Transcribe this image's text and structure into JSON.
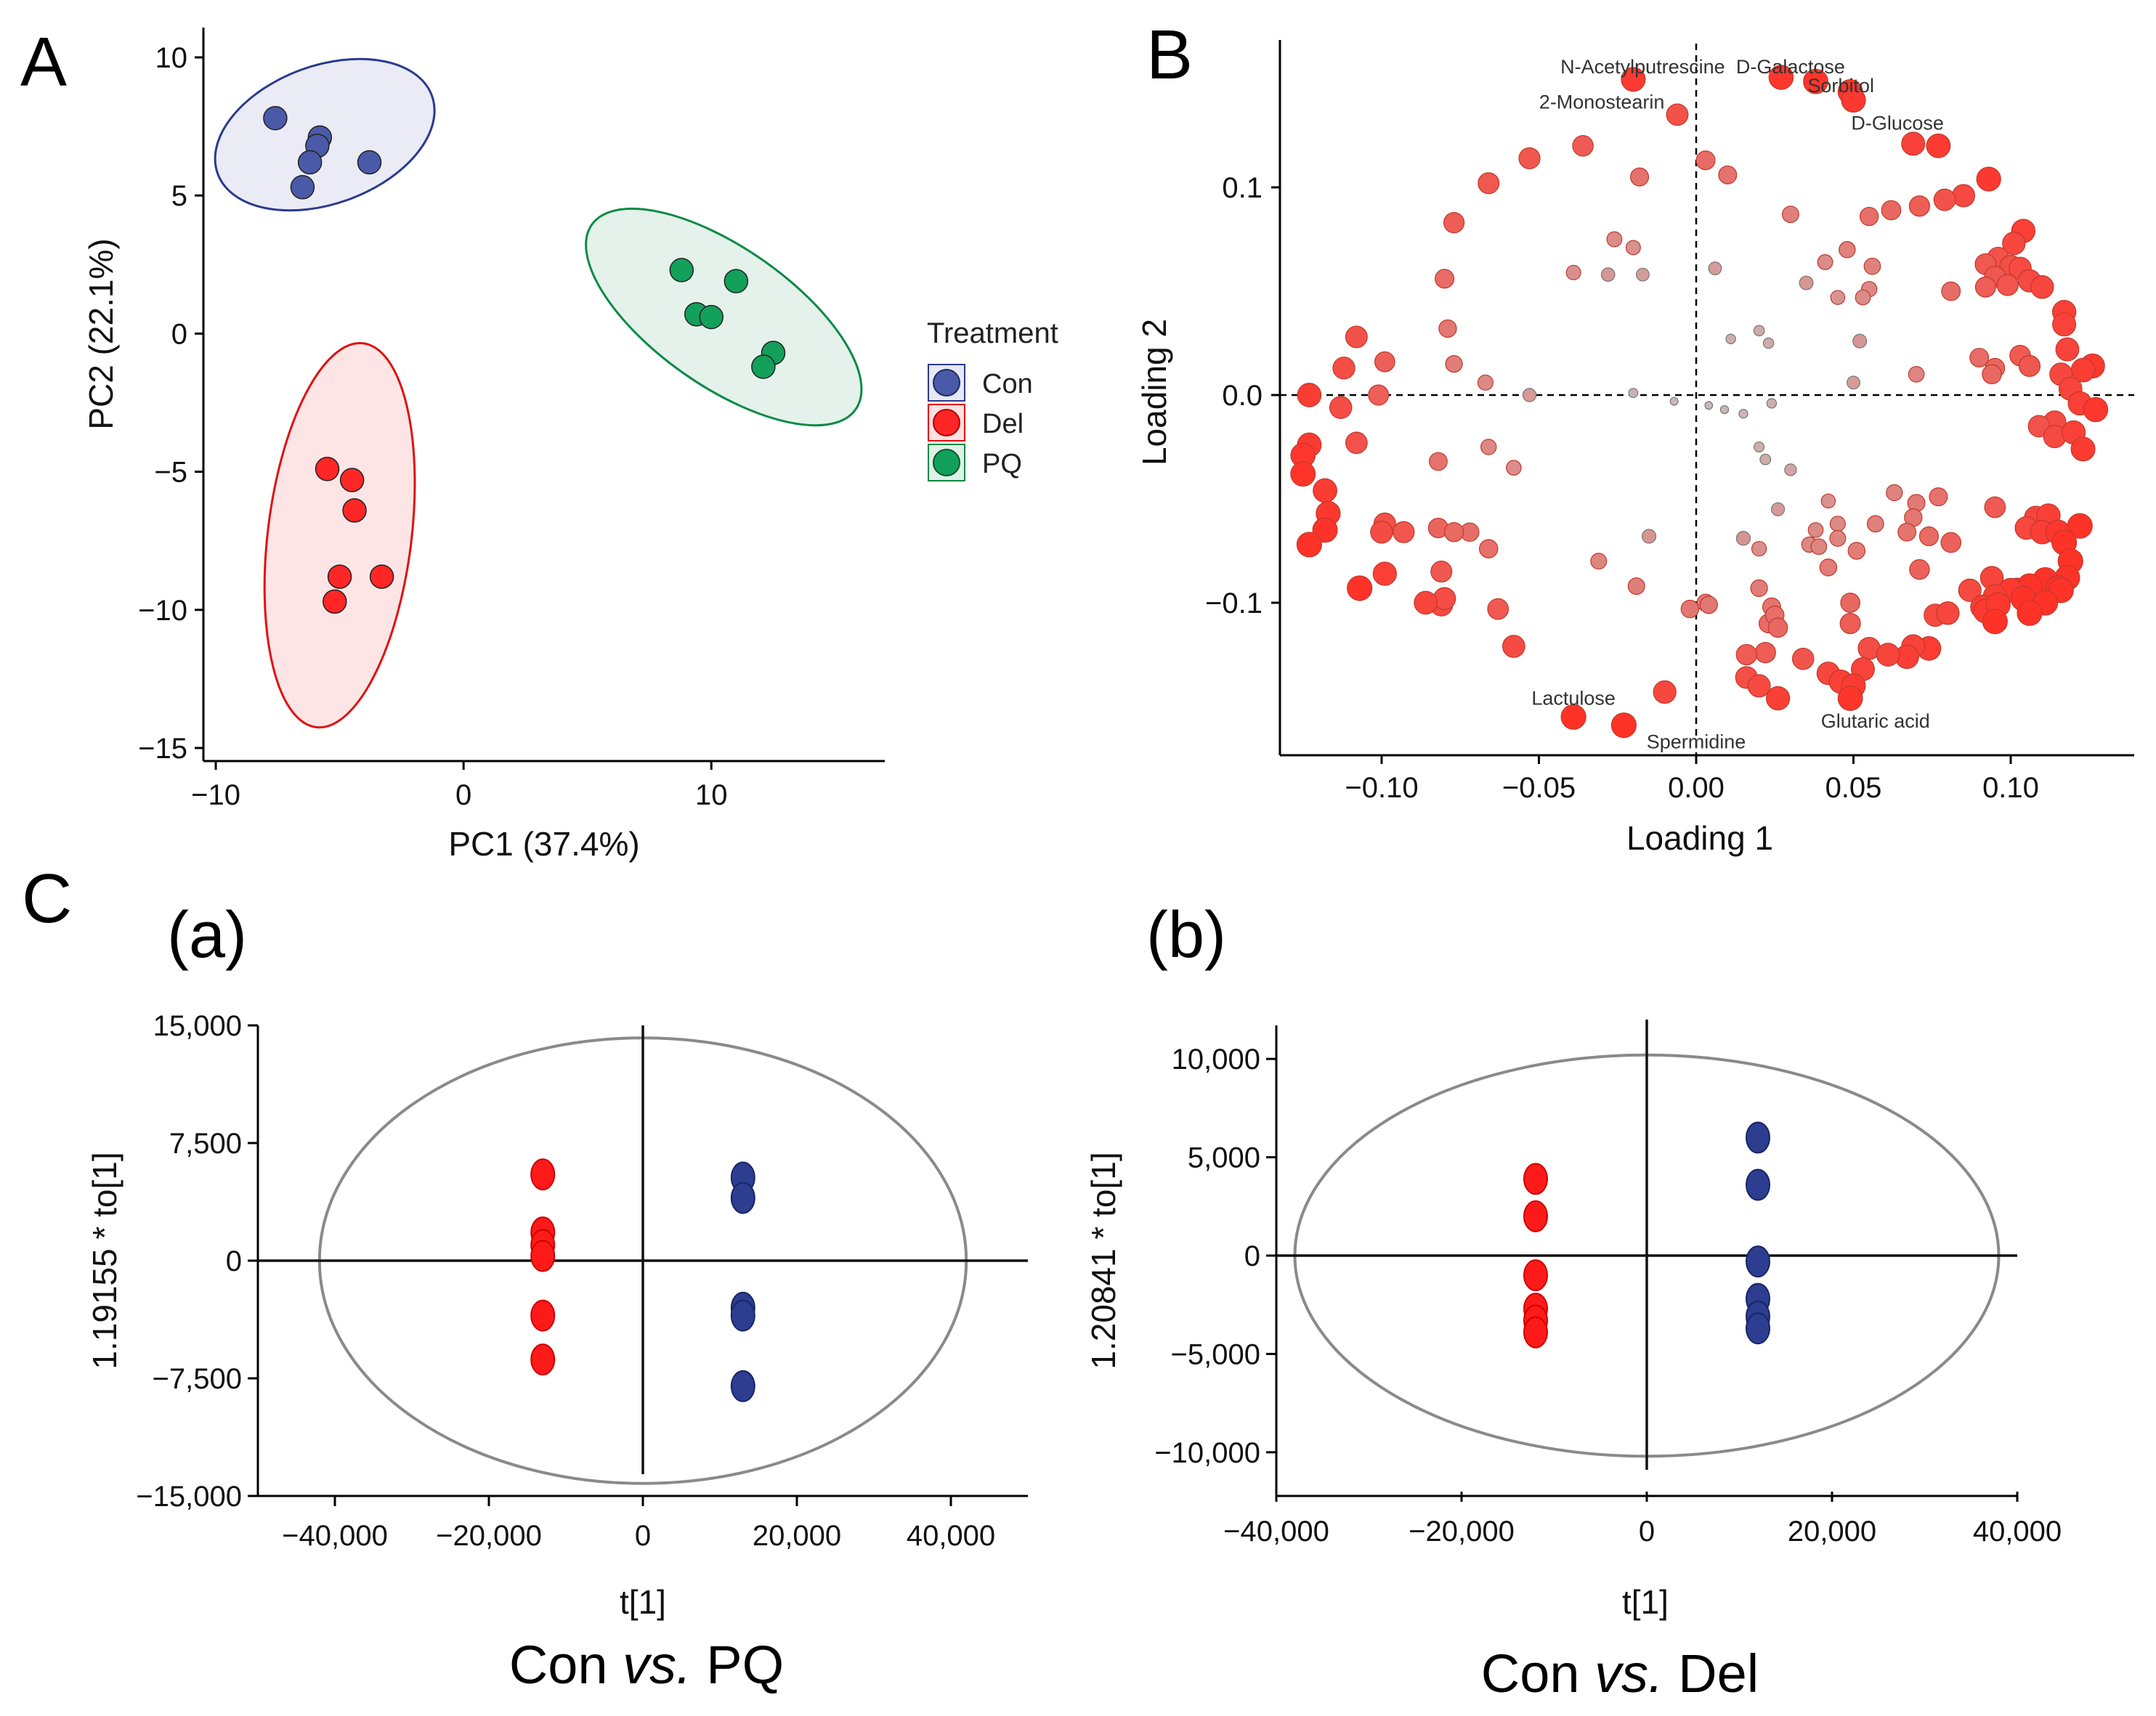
{
  "panels": [
    {
      "letter": "A"
    },
    {
      "letter": "B"
    },
    {
      "letter": "C"
    }
  ],
  "subpanels": [
    {
      "letter": "(a)",
      "comparison": {
        "pre": "Con ",
        "vs": "vs.",
        "post": " PQ"
      }
    },
    {
      "letter": "(b)",
      "comparison": {
        "pre": "Con ",
        "vs": "vs.",
        "post": " Del"
      }
    }
  ],
  "legend": {
    "title": "Treatment",
    "items": [
      {
        "label": "Con",
        "color": "#4a5aa8",
        "fill": "#e6e8f3",
        "stroke": "#2b3a8f"
      },
      {
        "label": "Del",
        "color": "#ff2626",
        "fill": "#fde0e0",
        "stroke": "#e01010"
      },
      {
        "label": "PQ",
        "color": "#12a05a",
        "fill": "#dff0e8",
        "stroke": "#0a8a45"
      }
    ]
  },
  "chart_data": [
    {
      "id": "A",
      "type": "scatter",
      "xlabel": "PC1 (37.4%)",
      "ylabel": "PC2 (22.1%)",
      "xlim": [
        -10.5,
        17
      ],
      "ylim": [
        -15,
        10
      ],
      "xticks": [
        -10,
        0,
        10
      ],
      "xtick_labels": [
        "−10",
        "0",
        "10"
      ],
      "yticks": [
        10,
        5,
        0,
        -5,
        -10,
        -15
      ],
      "ytick_labels": [
        "10",
        "5",
        "0",
        "−5",
        "−10",
        "−15"
      ],
      "series": [
        {
          "name": "Con",
          "points": [
            [
              -7.6,
              7.8
            ],
            [
              -5.8,
              7.1
            ],
            [
              -5.9,
              6.8
            ],
            [
              -6.2,
              6.2
            ],
            [
              -3.8,
              6.2
            ],
            [
              -6.5,
              5.3
            ]
          ],
          "ellipse": {
            "cx": -5.6,
            "cy": 7.2,
            "rx": 4.6,
            "ry": 2.5,
            "angle": 20
          }
        },
        {
          "name": "Del",
          "points": [
            [
              -5.5,
              -4.9
            ],
            [
              -4.5,
              -5.3
            ],
            [
              -4.4,
              -6.4
            ],
            [
              -5.0,
              -8.8
            ],
            [
              -3.3,
              -8.8
            ],
            [
              -5.2,
              -9.7
            ]
          ],
          "ellipse": {
            "cx": -5.0,
            "cy": -7.3,
            "rx": 2.9,
            "ry": 7.0,
            "angle": -7
          }
        },
        {
          "name": "PQ",
          "points": [
            [
              8.8,
              2.3
            ],
            [
              11.0,
              1.9
            ],
            [
              9.4,
              0.7
            ],
            [
              10.0,
              0.6
            ],
            [
              12.5,
              -0.7
            ],
            [
              12.1,
              -1.2
            ]
          ],
          "ellipse": {
            "cx": 10.5,
            "cy": 0.6,
            "rx": 6.5,
            "ry": 2.5,
            "angle": -35
          }
        }
      ]
    },
    {
      "id": "B",
      "type": "scatter",
      "xlabel": "Loading 1",
      "ylabel": "Loading 2",
      "xlim": [
        -0.13,
        0.13
      ],
      "ylim": [
        -0.175,
        0.17
      ],
      "xticks": [
        -0.1,
        -0.05,
        0.0,
        0.05,
        0.1
      ],
      "xtick_labels": [
        "−0.10",
        "−0.05",
        "0.00",
        "0.05",
        "0.10"
      ],
      "yticks": [
        0.1,
        0.0,
        -0.1
      ],
      "ytick_labels": [
        "0.1",
        "0.0",
        "−0.1"
      ],
      "labels": [
        {
          "text": "N-Acetylputrescine",
          "x": -0.017,
          "y": 0.158
        },
        {
          "text": "D-Galactose",
          "x": 0.03,
          "y": 0.158
        },
        {
          "text": "Sorbitol",
          "x": 0.046,
          "y": 0.149
        },
        {
          "text": "2-Monostearin",
          "x": -0.03,
          "y": 0.141
        },
        {
          "text": "D-Glucose",
          "x": 0.064,
          "y": 0.131
        },
        {
          "text": "Lactulose",
          "x": -0.039,
          "y": -0.146
        },
        {
          "text": "Spermidine",
          "x": 0.0,
          "y": -0.167
        },
        {
          "text": "Glutaric acid",
          "x": 0.057,
          "y": -0.157
        }
      ],
      "points": [
        [
          -0.02,
          0.152
        ],
        [
          0.027,
          0.153
        ],
        [
          0.038,
          0.151
        ],
        [
          0.049,
          0.146
        ],
        [
          0.05,
          0.142
        ],
        [
          -0.006,
          0.135
        ],
        [
          -0.036,
          0.12
        ],
        [
          -0.053,
          0.114
        ],
        [
          0.069,
          0.121
        ],
        [
          0.077,
          0.12
        ],
        [
          -0.066,
          0.102
        ],
        [
          -0.018,
          0.105
        ],
        [
          0.003,
          0.113
        ],
        [
          0.01,
          0.106
        ],
        [
          0.093,
          0.104
        ],
        [
          0.085,
          0.096
        ],
        [
          0.079,
          0.094
        ],
        [
          0.071,
          0.091
        ],
        [
          0.062,
          0.089
        ],
        [
          0.055,
          0.086
        ],
        [
          -0.077,
          0.083
        ],
        [
          0.03,
          0.087
        ],
        [
          0.104,
          0.079
        ],
        [
          -0.026,
          0.075
        ],
        [
          -0.02,
          0.071
        ],
        [
          0.101,
          0.073
        ],
        [
          0.048,
          0.07
        ],
        [
          0.096,
          0.066
        ],
        [
          0.092,
          0.063
        ],
        [
          0.1,
          0.062
        ],
        [
          0.041,
          0.064
        ],
        [
          0.103,
          0.061
        ],
        [
          0.056,
          0.062
        ],
        [
          0.095,
          0.057
        ],
        [
          0.106,
          0.055
        ],
        [
          0.099,
          0.053
        ],
        [
          -0.08,
          0.056
        ],
        [
          -0.039,
          0.059
        ],
        [
          -0.028,
          0.058
        ],
        [
          -0.017,
          0.058
        ],
        [
          0.006,
          0.061
        ],
        [
          0.035,
          0.054
        ],
        [
          0.055,
          0.051
        ],
        [
          0.11,
          0.052
        ],
        [
          0.092,
          0.052
        ],
        [
          0.081,
          0.05
        ],
        [
          0.053,
          0.047
        ],
        [
          0.045,
          0.047
        ],
        [
          0.117,
          0.04
        ],
        [
          0.117,
          0.034
        ],
        [
          -0.108,
          0.028
        ],
        [
          0.02,
          0.031
        ],
        [
          -0.079,
          0.032
        ],
        [
          0.023,
          0.025
        ],
        [
          0.011,
          0.027
        ],
        [
          0.052,
          0.026
        ],
        [
          0.118,
          0.022
        ],
        [
          0.103,
          0.019
        ],
        [
          0.09,
          0.018
        ],
        [
          0.106,
          0.014
        ],
        [
          -0.112,
          0.013
        ],
        [
          -0.077,
          0.015
        ],
        [
          -0.099,
          0.016
        ],
        [
          0.095,
          0.013
        ],
        [
          0.126,
          0.014
        ],
        [
          0.123,
          0.012
        ],
        [
          0.094,
          0.01
        ],
        [
          0.116,
          0.01
        ],
        [
          0.07,
          0.01
        ],
        [
          -0.067,
          0.006
        ],
        [
          0.05,
          0.006
        ],
        [
          0.119,
          0.003
        ],
        [
          -0.101,
          0.0
        ],
        [
          -0.123,
          0.0
        ],
        [
          -0.113,
          -0.006
        ],
        [
          0.122,
          -0.004
        ],
        [
          0.127,
          -0.007
        ],
        [
          -0.053,
          0.0
        ],
        [
          -0.02,
          0.001
        ],
        [
          0.024,
          -0.004
        ],
        [
          -0.007,
          -0.003
        ],
        [
          0.004,
          -0.005
        ],
        [
          0.009,
          -0.007
        ],
        [
          0.015,
          -0.009
        ],
        [
          0.114,
          -0.013
        ],
        [
          0.109,
          -0.015
        ],
        [
          0.114,
          -0.02
        ],
        [
          0.12,
          -0.018
        ],
        [
          -0.123,
          -0.024
        ],
        [
          -0.125,
          -0.029
        ],
        [
          0.123,
          -0.026
        ],
        [
          -0.108,
          -0.023
        ],
        [
          -0.066,
          -0.025
        ],
        [
          0.02,
          -0.025
        ],
        [
          -0.082,
          -0.032
        ],
        [
          -0.058,
          -0.035
        ],
        [
          -0.125,
          -0.038
        ],
        [
          0.022,
          -0.031
        ],
        [
          0.03,
          -0.036
        ],
        [
          -0.118,
          -0.046
        ],
        [
          0.063,
          -0.047
        ],
        [
          0.042,
          -0.051
        ],
        [
          0.07,
          -0.052
        ],
        [
          0.077,
          -0.049
        ],
        [
          0.026,
          -0.055
        ],
        [
          0.095,
          -0.054
        ],
        [
          0.108,
          -0.059
        ],
        [
          0.112,
          -0.058
        ],
        [
          -0.117,
          -0.057
        ],
        [
          0.105,
          -0.064
        ],
        [
          -0.118,
          -0.065
        ],
        [
          0.045,
          -0.062
        ],
        [
          0.057,
          -0.062
        ],
        [
          0.069,
          -0.059
        ],
        [
          0.038,
          -0.065
        ],
        [
          0.122,
          -0.063
        ],
        [
          -0.072,
          -0.066
        ],
        [
          -0.015,
          -0.068
        ],
        [
          -0.099,
          -0.062
        ],
        [
          -0.1,
          -0.066
        ],
        [
          -0.082,
          -0.064
        ],
        [
          0.11,
          -0.066
        ],
        [
          0.074,
          -0.068
        ],
        [
          0.045,
          -0.069
        ],
        [
          0.015,
          -0.069
        ],
        [
          0.115,
          -0.066
        ],
        [
          -0.077,
          -0.066
        ],
        [
          0.036,
          -0.072
        ],
        [
          0.02,
          -0.074
        ],
        [
          0.117,
          -0.071
        ],
        [
          -0.093,
          -0.066
        ],
        [
          0.067,
          -0.066
        ],
        [
          -0.123,
          -0.072
        ],
        [
          0.051,
          -0.075
        ],
        [
          -0.066,
          -0.074
        ],
        [
          0.039,
          -0.073
        ],
        [
          0.081,
          -0.071
        ],
        [
          0.119,
          -0.08
        ],
        [
          -0.081,
          -0.085
        ],
        [
          0.118,
          -0.088
        ],
        [
          0.112,
          -0.092
        ],
        [
          0.102,
          -0.094
        ],
        [
          -0.031,
          -0.08
        ],
        [
          0.111,
          -0.089
        ],
        [
          0.094,
          -0.088
        ],
        [
          0.071,
          -0.084
        ],
        [
          0.042,
          -0.083
        ],
        [
          0.106,
          -0.092
        ],
        [
          -0.099,
          -0.086
        ],
        [
          0.115,
          -0.093
        ],
        [
          0.1,
          -0.094
        ],
        [
          0.095,
          -0.097
        ],
        [
          0.087,
          -0.094
        ],
        [
          0.104,
          -0.098
        ],
        [
          -0.107,
          -0.093
        ],
        [
          0.116,
          -0.094
        ],
        [
          -0.081,
          -0.101
        ],
        [
          0.091,
          -0.102
        ],
        [
          0.092,
          -0.104
        ],
        [
          -0.08,
          -0.098
        ],
        [
          0.096,
          -0.101
        ],
        [
          0.111,
          -0.1
        ],
        [
          -0.086,
          -0.1
        ],
        [
          -0.019,
          -0.092
        ],
        [
          0.02,
          -0.093
        ],
        [
          -0.063,
          -0.103
        ],
        [
          0.024,
          -0.102
        ],
        [
          0.049,
          -0.1
        ],
        [
          0.106,
          -0.105
        ],
        [
          0.095,
          -0.109
        ],
        [
          0.076,
          -0.106
        ],
        [
          0.08,
          -0.105
        ],
        [
          0.003,
          -0.1
        ],
        [
          -0.002,
          -0.103
        ],
        [
          0.004,
          -0.101
        ],
        [
          0.023,
          -0.11
        ],
        [
          0.025,
          -0.106
        ],
        [
          0.049,
          -0.11
        ],
        [
          0.026,
          -0.112
        ],
        [
          -0.058,
          -0.121
        ],
        [
          0.074,
          -0.122
        ],
        [
          0.055,
          -0.122
        ],
        [
          0.069,
          -0.121
        ],
        [
          0.022,
          -0.124
        ],
        [
          0.067,
          -0.126
        ],
        [
          0.016,
          -0.125
        ],
        [
          0.034,
          -0.127
        ],
        [
          0.042,
          -0.134
        ],
        [
          0.053,
          -0.132
        ],
        [
          0.046,
          -0.138
        ],
        [
          0.05,
          -0.14
        ],
        [
          0.061,
          -0.125
        ],
        [
          0.016,
          -0.136
        ],
        [
          0.02,
          -0.14
        ],
        [
          0.026,
          -0.146
        ],
        [
          0.049,
          -0.146
        ],
        [
          -0.01,
          -0.143
        ],
        [
          -0.039,
          -0.155
        ],
        [
          -0.023,
          -0.159
        ]
      ]
    },
    {
      "id": "C-a",
      "type": "scatter",
      "xlabel": "t[1]",
      "ylabel": "1.19155 * to[1]",
      "xlim": [
        -50000,
        50000
      ],
      "ylim": [
        -15000,
        15000
      ],
      "xticks": [
        -40000,
        -20000,
        0,
        20000,
        40000
      ],
      "xtick_labels": [
        "−40,000",
        "−20,000",
        "0",
        "20,000",
        "40,000"
      ],
      "yticks": [
        15000,
        7500,
        0,
        -7500,
        -15000
      ],
      "ytick_labels": [
        "15,000",
        "7,500",
        "0",
        "−7,500",
        "−15,000"
      ],
      "ellipse": {
        "rx": 42000,
        "ry": 14200
      },
      "series": [
        {
          "name": "Del",
          "x": -13000,
          "y": [
            5500,
            1800,
            1000,
            300,
            -3500,
            -6300
          ]
        },
        {
          "name": "Con",
          "x": 13000,
          "y": [
            5300,
            4000,
            -3000,
            -3500,
            -8000
          ]
        }
      ]
    },
    {
      "id": "C-b",
      "type": "scatter",
      "xlabel": "t[1]",
      "ylabel": "1.20841 * to[1]",
      "xlim": [
        -40000,
        40000
      ],
      "ylim": [
        -12000,
        12000
      ],
      "xticks": [
        -40000,
        -20000,
        0,
        20000,
        40000
      ],
      "xtick_labels": [
        "−40,000",
        "−20,000",
        "0",
        "20,000",
        "40,000"
      ],
      "yticks": [
        10000,
        5000,
        0,
        -5000,
        -10000
      ],
      "ytick_labels": [
        "10,000",
        "5,000",
        "0",
        "−5,000",
        "−10,000"
      ],
      "ellipse": {
        "rx": 38000,
        "ry": 10200
      },
      "series": [
        {
          "name": "Del",
          "x": -12000,
          "y": [
            3900,
            2000,
            -1000,
            -2700,
            -3300,
            -3900
          ]
        },
        {
          "name": "Con",
          "x": 12000,
          "y": [
            6000,
            3600,
            -300,
            -2200,
            -3100,
            -3700
          ]
        }
      ]
    }
  ]
}
